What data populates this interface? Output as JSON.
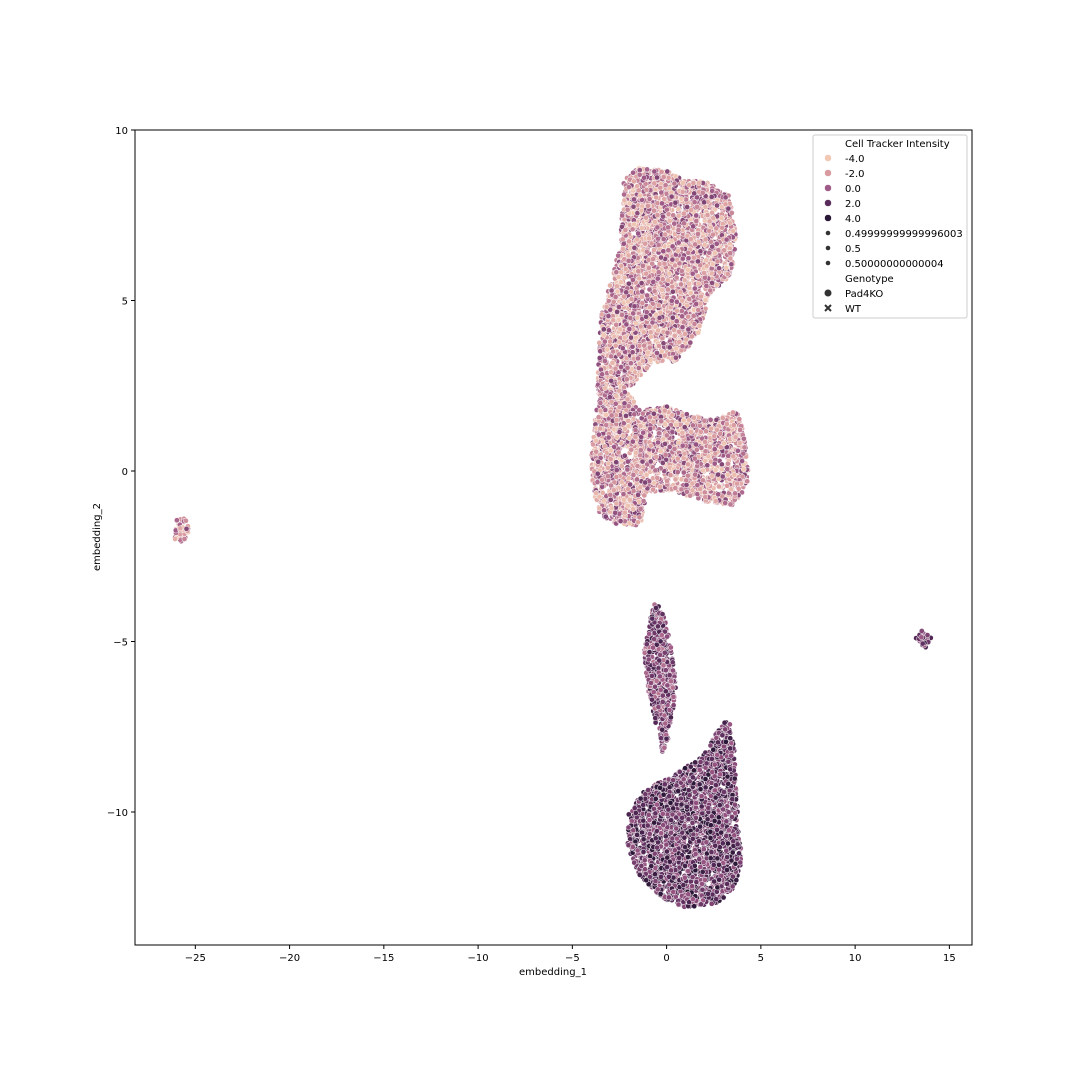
{
  "chart_data": {
    "type": "scatter",
    "xlabel": "embedding_1",
    "ylabel": "embedding_2",
    "xlim": [
      -28.2,
      16.2
    ],
    "ylim": [
      -13.9,
      10.0
    ],
    "xticks": [
      -25,
      -20,
      -15,
      -10,
      -5,
      0,
      5,
      10,
      15
    ],
    "xtick_labels": [
      "−25",
      "−20",
      "−15",
      "−10",
      "−5",
      "0",
      "5",
      "10",
      "15"
    ],
    "yticks": [
      -10,
      -5,
      0,
      5,
      10
    ],
    "ytick_labels": [
      "−10",
      "−5",
      "0",
      "5",
      "10"
    ],
    "grid": false,
    "legend_position": "top-right",
    "legend": {
      "hue_title": "Cell Tracker Intensity",
      "hue_entries": [
        {
          "label": "-4.0",
          "color": "#f0c8b4"
        },
        {
          "label": "-2.0",
          "color": "#d99ba0"
        },
        {
          "label": "0.0",
          "color": "#a05a88"
        },
        {
          "label": "2.0",
          "color": "#5a2c5c"
        },
        {
          "label": "4.0",
          "color": "#2a1636"
        }
      ],
      "size_entries": [
        {
          "label": "0.49999999999996003"
        },
        {
          "label": "0.5"
        },
        {
          "label": "0.50000000000004"
        }
      ],
      "style_title": "Genotype",
      "style_entries": [
        {
          "label": "Pad4KO",
          "marker": "circle"
        },
        {
          "label": "WT",
          "marker": "x"
        }
      ]
    },
    "clusters": [
      {
        "region": "upper-left-lobe",
        "hue_range": [
          -4,
          1
        ],
        "polygon": [
          [
            -2.3,
            8.5
          ],
          [
            -1.5,
            8.9
          ],
          [
            0,
            8.8
          ],
          [
            1.0,
            8.5
          ],
          [
            2.0,
            8.5
          ],
          [
            3.3,
            8.1
          ],
          [
            3.7,
            7.0
          ],
          [
            3.5,
            5.8
          ],
          [
            2.3,
            5.2
          ],
          [
            1.7,
            4.0
          ],
          [
            0.5,
            3.2
          ],
          [
            -0.8,
            3.2
          ],
          [
            -2.0,
            2.3
          ],
          [
            -1.8,
            1.5
          ],
          [
            -3.0,
            1.0
          ],
          [
            -3.7,
            2.5
          ],
          [
            -3.5,
            4.5
          ],
          [
            -2.5,
            6.5
          ],
          [
            -2.3,
            8.0
          ]
        ]
      },
      {
        "region": "upper-lower-lobe",
        "hue_range": [
          -4,
          1
        ],
        "polygon": [
          [
            -3.8,
            1.5
          ],
          [
            -3.5,
            2.5
          ],
          [
            -2.0,
            2.3
          ],
          [
            -1.5,
            1.8
          ],
          [
            0,
            1.9
          ],
          [
            1.0,
            1.7
          ],
          [
            2.5,
            1.5
          ],
          [
            3.8,
            1.8
          ],
          [
            4.1,
            1.0
          ],
          [
            4.4,
            0
          ],
          [
            4.2,
            -0.5
          ],
          [
            3.5,
            -1.0
          ],
          [
            2.0,
            -0.9
          ],
          [
            0.5,
            -0.6
          ],
          [
            -1.0,
            -0.6
          ],
          [
            -1.4,
            -1.6
          ],
          [
            -2.6,
            -1.6
          ],
          [
            -3.5,
            -1.3
          ],
          [
            -4.0,
            -0.5
          ],
          [
            -4.0,
            0.5
          ]
        ]
      },
      {
        "region": "lower-spindle",
        "hue_range": [
          -1,
          3
        ],
        "polygon": [
          [
            -0.6,
            -3.8
          ],
          [
            -0.1,
            -4.3
          ],
          [
            0.3,
            -5.3
          ],
          [
            0.5,
            -6.3
          ],
          [
            0.3,
            -7.2
          ],
          [
            0.1,
            -7.8
          ],
          [
            -0.2,
            -8.3
          ],
          [
            -0.5,
            -7.6
          ],
          [
            -1.0,
            -6.4
          ],
          [
            -1.2,
            -5.3
          ],
          [
            -0.9,
            -4.4
          ]
        ]
      },
      {
        "region": "lower-blob",
        "hue_range": [
          0,
          4
        ],
        "polygon": [
          [
            -2.0,
            -10.0
          ],
          [
            -1.2,
            -9.4
          ],
          [
            0,
            -9.0
          ],
          [
            1.0,
            -8.7
          ],
          [
            2.0,
            -8.3
          ],
          [
            2.7,
            -7.6
          ],
          [
            3.3,
            -7.2
          ],
          [
            3.6,
            -8.2
          ],
          [
            3.7,
            -9.5
          ],
          [
            3.9,
            -10.5
          ],
          [
            4.0,
            -11.5
          ],
          [
            3.6,
            -12.2
          ],
          [
            2.7,
            -12.7
          ],
          [
            1.0,
            -12.8
          ],
          [
            -0.3,
            -12.5
          ],
          [
            -1.5,
            -11.8
          ],
          [
            -2.1,
            -11.0
          ]
        ]
      },
      {
        "region": "small-left-cluster",
        "hue_range": [
          -4,
          1
        ],
        "polygon": [
          [
            -26.0,
            -1.4
          ],
          [
            -25.5,
            -1.4
          ],
          [
            -25.3,
            -1.8
          ],
          [
            -25.6,
            -2.1
          ],
          [
            -26.1,
            -2.0
          ]
        ]
      },
      {
        "region": "small-right-cluster",
        "hue_range": [
          -1,
          3
        ],
        "polygon": [
          [
            13.2,
            -4.9
          ],
          [
            13.6,
            -4.6
          ],
          [
            14.1,
            -4.9
          ],
          [
            13.7,
            -5.2
          ]
        ]
      }
    ]
  }
}
